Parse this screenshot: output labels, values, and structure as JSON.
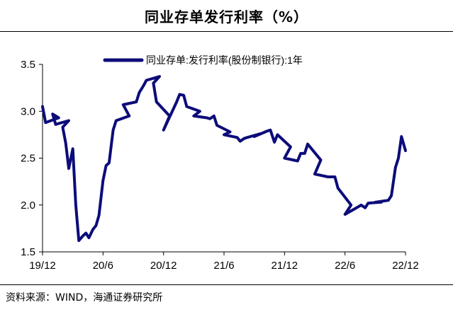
{
  "header": {
    "title": "同业存单发行利率（%）"
  },
  "footer": {
    "source": "资料来源：WIND，海通证券研究所"
  },
  "colors": {
    "series": "#0c0c7a",
    "axis": "#000000"
  },
  "chart_data": {
    "type": "line",
    "title": "同业存单发行利率（%）",
    "xlabel": "",
    "ylabel": "",
    "ylim": [
      1.5,
      3.5
    ],
    "yticks": [
      "1.5",
      "2.0",
      "2.5",
      "3.0",
      "3.5"
    ],
    "yticks_values": [
      1.5,
      2.0,
      2.5,
      3.0,
      3.5
    ],
    "xlim": [
      "2019-12",
      "2022-12"
    ],
    "xticks": [
      "19/12",
      "20/6",
      "20/12",
      "21/6",
      "21/12",
      "22/6",
      "22/12"
    ],
    "xticks_values": [
      "2019-12",
      "2020-06",
      "2020-12",
      "2021-06",
      "2021-12",
      "2022-06",
      "2022-12"
    ],
    "grid": false,
    "legend_position": "top",
    "series": [
      {
        "name": "同业存单:发行利率(股份制银行):1年",
        "x": [
          "2019-12",
          "2019-12",
          "2020-01",
          "2020-01",
          "2020-01",
          "2020-02",
          "2020-02",
          "2020-02",
          "2020-02",
          "2020-03",
          "2020-03",
          "2020-03",
          "2020-04",
          "2020-04",
          "2020-04",
          "2020-05",
          "2020-05",
          "2020-05",
          "2020-06",
          "2020-06",
          "2020-06",
          "2020-07",
          "2020-07",
          "2020-08",
          "2020-08",
          "2020-09",
          "2020-09",
          "2020-10",
          "2020-10",
          "2020-11",
          "2020-11",
          "2020-11",
          "2020-12",
          "2020-12",
          "2021-01",
          "2021-01",
          "2021-02",
          "2021-02",
          "2021-03",
          "2021-03",
          "2021-04",
          "2021-04",
          "2021-05",
          "2021-05",
          "2021-06",
          "2021-06",
          "2021-07",
          "2021-07",
          "2021-08",
          "2021-08",
          "2021-09",
          "2021-09",
          "2021-10",
          "2021-10",
          "2021-11",
          "2021-11",
          "2021-12",
          "2021-12",
          "2022-01",
          "2022-01",
          "2022-02",
          "2022-02",
          "2022-03",
          "2022-03",
          "2022-04",
          "2022-04",
          "2022-05",
          "2022-05",
          "2022-06",
          "2022-06",
          "2022-07",
          "2022-07",
          "2022-08",
          "2022-08",
          "2022-09",
          "2022-09",
          "2022-10",
          "2022-10",
          "2022-11",
          "2022-11",
          "2022-11",
          "2022-12"
        ],
        "y": [
          3.05,
          2.88,
          2.93,
          2.97,
          2.86,
          2.9,
          2.83,
          2.66,
          2.39,
          2.6,
          2.0,
          1.62,
          1.67,
          1.7,
          1.65,
          1.74,
          1.78,
          1.89,
          2.26,
          2.42,
          2.45,
          2.8,
          2.9,
          2.95,
          3.07,
          3.1,
          3.2,
          3.27,
          3.33,
          3.37,
          3.3,
          3.1,
          2.95,
          2.8,
          3.1,
          3.18,
          3.17,
          3.05,
          3.0,
          2.95,
          2.93,
          2.92,
          2.95,
          2.85,
          2.78,
          2.75,
          2.72,
          2.68,
          2.71,
          2.72,
          2.76,
          2.73,
          2.79,
          2.8,
          2.67,
          2.75,
          2.62,
          2.5,
          2.47,
          2.55,
          2.55,
          2.65,
          2.48,
          2.33,
          2.3,
          2.3,
          2.3,
          2.18,
          2.0,
          1.9,
          1.98,
          2.0,
          1.97,
          2.02,
          2.03,
          2.03,
          2.05,
          2.1,
          2.4,
          2.5,
          2.73,
          2.58
        ]
      }
    ]
  }
}
